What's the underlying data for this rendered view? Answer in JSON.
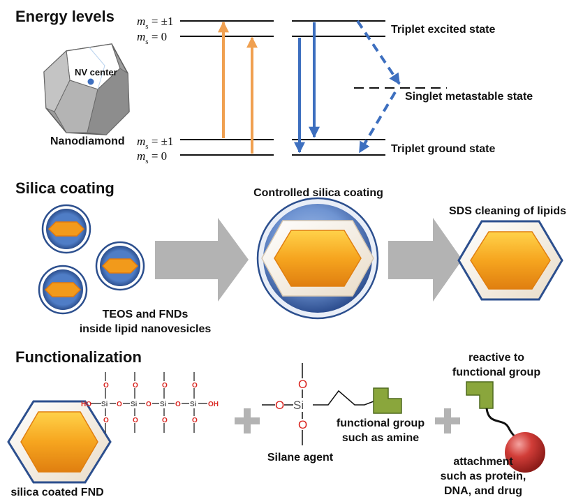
{
  "sections": {
    "energy": "Energy levels",
    "silica": "Silica coating",
    "func": "Functionalization"
  },
  "energy": {
    "levels_upper": [
      {
        "m": "m",
        "s": "s",
        "val": " = ±1"
      },
      {
        "m": "m",
        "s": "s",
        "val": " = 0"
      }
    ],
    "levels_lower": [
      {
        "m": "m",
        "s": "s",
        "val": " = ±1"
      },
      {
        "m": "m",
        "s": "s",
        "val": " = 0"
      }
    ],
    "nv_center": "NV center",
    "nanodiamond": "Nanodiamond",
    "triplet_excited": "Triplet excited state",
    "singlet_metastable": "Singlet metastable state",
    "triplet_ground": "Triplet ground state"
  },
  "silica": {
    "teos_line1": "TEOS and FNDs",
    "teos_line2": "inside lipid nanovesicles",
    "controlled": "Controlled silica coating",
    "sds": "SDS cleaning of lipids"
  },
  "func": {
    "silica_fnd": "silica coated FND",
    "chem": {
      "O": "O",
      "Si": "Si",
      "HO": "HO",
      "OH": "OH"
    },
    "silane_agent": "Silane agent",
    "functional_group_line1": "functional group",
    "functional_group_line2": "such as amine",
    "reactive_line1": "reactive to",
    "reactive_line2": "functional group",
    "attach_line1": "attachment",
    "attach_line2": "such as protein,",
    "attach_line3": "DNA, and drug"
  },
  "colors": {
    "orange_arrow": "#f0a050",
    "blue_arrow": "#3d6fbf",
    "vesicle_blue": "#3d6fbf",
    "core_orange": "#f29a1b",
    "gray_arrow": "#b3b3b3",
    "green_group": "#8aa63c",
    "red_sphere": "#c0302c"
  }
}
